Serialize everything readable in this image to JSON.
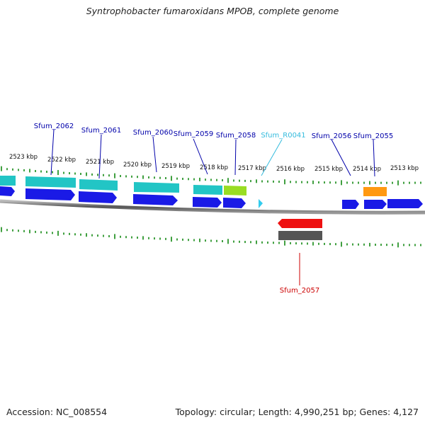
{
  "title": "Syntrophobacter fumaroxidans MPOB, complete genome",
  "footer": {
    "accession": "Accession: NC_008554",
    "summary": "Topology: circular; Length: 4,990,251 bp; Genes: 4,127"
  },
  "ticks": [
    {
      "label": "2523 kbp"
    },
    {
      "label": "2522 kbp"
    },
    {
      "label": "2521 kbp"
    },
    {
      "label": "2520 kbp"
    },
    {
      "label": "2519 kbp"
    },
    {
      "label": "2518 kbp"
    },
    {
      "label": "2517 kbp"
    },
    {
      "label": "2516 kbp"
    },
    {
      "label": "2515 kbp"
    },
    {
      "label": "2514 kbp"
    },
    {
      "label": "2513 kbp"
    }
  ],
  "genes": [
    {
      "name": "Sfum_2062",
      "color": "#0000aa"
    },
    {
      "name": "Sfum_2061",
      "color": "#0000aa"
    },
    {
      "name": "Sfum_2060",
      "color": "#0000aa"
    },
    {
      "name": "Sfum_2059",
      "color": "#0000aa"
    },
    {
      "name": "Sfum_2058",
      "color": "#0000aa"
    },
    {
      "name": "Sfum_R0041",
      "color": "#33bbdd"
    },
    {
      "name": "Sfum_2056",
      "color": "#0000aa"
    },
    {
      "name": "Sfum_2055",
      "color": "#0000aa"
    },
    {
      "name": "Sfum_2057",
      "color": "#cc0000"
    }
  ],
  "colors": {
    "cds_forward": "#1a1ae6",
    "cds_reverse": "#ee1111",
    "feature_cyan": "#22c5c5",
    "feature_lime": "#99dd22",
    "feature_orange": "#ff9911",
    "feature_gray": "#555555",
    "rna": "#33ccee",
    "backbone": "#777777",
    "tick": "#118811"
  }
}
